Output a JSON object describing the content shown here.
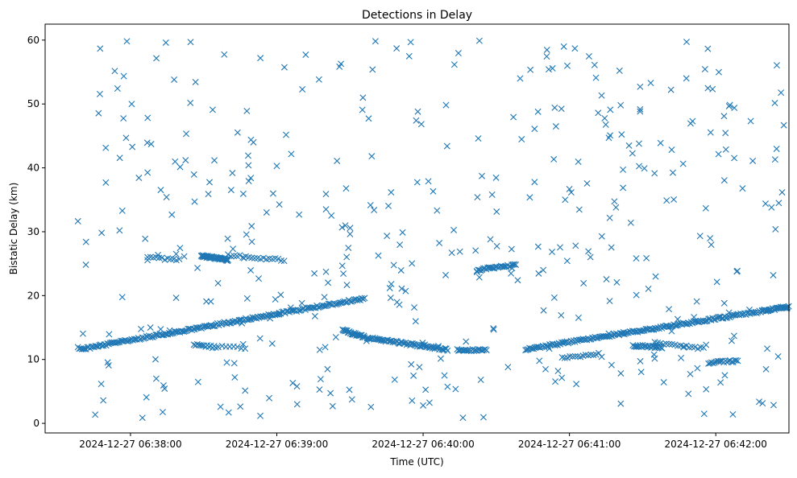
{
  "chart_data": {
    "type": "scatter",
    "title": "Detections in Delay",
    "xlabel": "Time (UTC)",
    "ylabel": "Bistatic Delay (km)",
    "x_unit": "seconds after 2024-12-27 06:38:00",
    "xlim": [
      -35,
      270
    ],
    "ylim": [
      -1.5,
      62.5
    ],
    "x_ticks": [
      {
        "value": 0,
        "label": "2024-12-27 06:38:00"
      },
      {
        "value": 60,
        "label": "2024-12-27 06:39:00"
      },
      {
        "value": 120,
        "label": "2024-12-27 06:40:00"
      },
      {
        "value": 180,
        "label": "2024-12-27 06:41:00"
      },
      {
        "value": 240,
        "label": "2024-12-27 06:42:00"
      }
    ],
    "y_ticks": [
      0,
      10,
      20,
      30,
      40,
      50,
      60
    ],
    "marker": "x",
    "color": "#1f77b4",
    "series": [
      {
        "tracks": [
          {
            "x0": -21,
            "x1": 61,
            "y0": 11.6,
            "y1": 17.2,
            "n": 150
          },
          {
            "x0": 61,
            "x1": 96,
            "y0": 17.2,
            "y1": 19.6,
            "n": 60
          },
          {
            "x0": 97,
            "x1": 130,
            "y0": 13.4,
            "y1": 11.5,
            "n": 70
          },
          {
            "x0": 162,
            "x1": 271,
            "y0": 11.6,
            "y1": 18.3,
            "n": 200
          },
          {
            "x0": 29,
            "x1": 40,
            "y0": 26.2,
            "y1": 25.6,
            "n": 50
          },
          {
            "x0": 40,
            "x1": 63,
            "y0": 26.3,
            "y1": 25.6,
            "n": 20
          },
          {
            "x0": 7,
            "x1": 20,
            "y0": 26.0,
            "y1": 25.6,
            "n": 12
          },
          {
            "x0": 87,
            "x1": 96,
            "y0": 14.6,
            "y1": 13.5,
            "n": 30
          },
          {
            "x0": 134,
            "x1": 146,
            "y0": 11.5,
            "y1": 11.5,
            "n": 22
          },
          {
            "x0": 142,
            "x1": 158,
            "y0": 24.0,
            "y1": 24.8,
            "n": 30
          },
          {
            "x0": 206,
            "x1": 218,
            "y0": 12.2,
            "y1": 11.9,
            "n": 25
          },
          {
            "x0": 215,
            "x1": 235,
            "y0": 12.6,
            "y1": 11.7,
            "n": 18
          },
          {
            "x0": 237,
            "x1": 249,
            "y0": 9.5,
            "y1": 9.8,
            "n": 20
          },
          {
            "x0": 26,
            "x1": 35,
            "y0": 12.3,
            "y1": 11.9,
            "n": 14
          },
          {
            "x0": 177,
            "x1": 192,
            "y0": 10.2,
            "y1": 10.9,
            "n": 15
          },
          {
            "x0": 259,
            "x1": 271,
            "y0": 17.6,
            "y1": 18.3,
            "n": 15
          },
          {
            "x0": 36,
            "x1": 47,
            "y0": 12.1,
            "y1": 11.8,
            "n": 8
          }
        ],
        "clutter": {
          "count": 420,
          "x_range": [
            -22,
            270
          ],
          "y_range": [
            0.5,
            60
          ]
        }
      }
    ]
  }
}
